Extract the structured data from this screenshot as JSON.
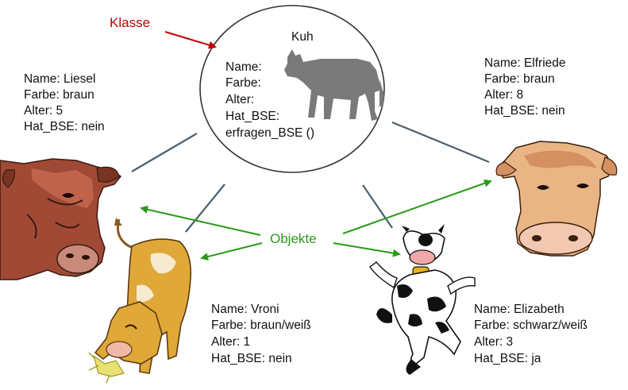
{
  "class_label": "Klasse",
  "objects_label": "Objekte",
  "class_box": {
    "title": "Kuh",
    "attributes": [
      "Name:",
      "Farbe:",
      "Alter:",
      "Hat_BSE:"
    ],
    "method": "erfragen_BSE ()"
  },
  "cows": [
    {
      "id": "liesel",
      "lines": [
        "Name: Liesel",
        "Farbe: braun",
        "Alter: 5",
        "Hat_BSE: nein"
      ]
    },
    {
      "id": "elfriede",
      "lines": [
        "Name: Elfriede",
        "Farbe: braun",
        "Alter: 8",
        "Hat_BSE: nein"
      ]
    },
    {
      "id": "vroni",
      "lines": [
        "Name: Vroni",
        "Farbe: braun/weiß",
        "Alter: 1",
        "Hat_BSE: nein"
      ]
    },
    {
      "id": "elizabeth",
      "lines": [
        "Name: Elizabeth",
        "Farbe: schwarz/weiß",
        "Alter: 3",
        "Hat_BSE: ja"
      ]
    }
  ],
  "colors": {
    "class_arrow": "#c00000",
    "object_arrow": "#2a9a1a",
    "connector": "#4a6070",
    "silhouette": "#7a7a7a"
  },
  "icons": [
    "cow-silhouette-icon",
    "brown-cow-icon",
    "orange-cow-icon",
    "grazing-cow-icon",
    "cartoon-cow-icon"
  ]
}
